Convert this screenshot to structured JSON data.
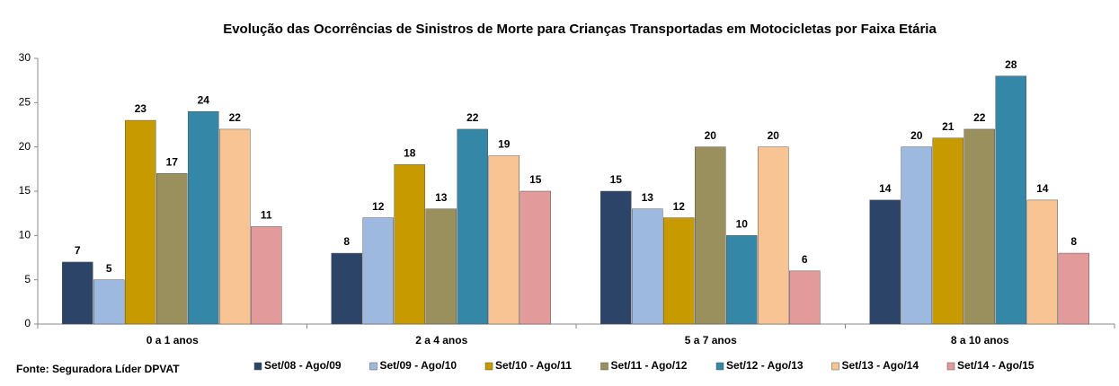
{
  "chart_data": {
    "type": "bar",
    "title": "Evolução das Ocorrências de Sinistros  de Morte para Crianças Transportadas  em Motocicletas por Faixa Etária",
    "source": "Fonte: Seguradora Líder DPVAT",
    "categories": [
      "0 a 1 anos",
      "2 a 4 anos",
      "5 a 7 anos",
      "8 a 10 anos"
    ],
    "series": [
      {
        "name": "Set/08 - Ago/09",
        "color": "#2b4468",
        "values": [
          7,
          8,
          15,
          14
        ]
      },
      {
        "name": "Set/09 - Ago/10",
        "color": "#9db9e0",
        "values": [
          5,
          12,
          13,
          20
        ]
      },
      {
        "name": "Set/10 - Ago/11",
        "color": "#c79a00",
        "values": [
          23,
          18,
          12,
          21
        ]
      },
      {
        "name": "Set/11 - Ago/12",
        "color": "#9a905e",
        "values": [
          17,
          13,
          20,
          22
        ]
      },
      {
        "name": "Set/12 - Ago/13",
        "color": "#3587a8",
        "values": [
          24,
          22,
          10,
          28
        ]
      },
      {
        "name": "Set/13 - Ago/14",
        "color": "#f8c494",
        "values": [
          22,
          19,
          20,
          14
        ]
      },
      {
        "name": "Set/14 - Ago/15",
        "color": "#e39a9a",
        "values": [
          11,
          15,
          6,
          8
        ]
      }
    ],
    "ylim": [
      0,
      30
    ],
    "yticks": [
      0,
      5,
      10,
      15,
      20,
      25,
      30
    ],
    "grid": false,
    "legend": "bottom"
  }
}
